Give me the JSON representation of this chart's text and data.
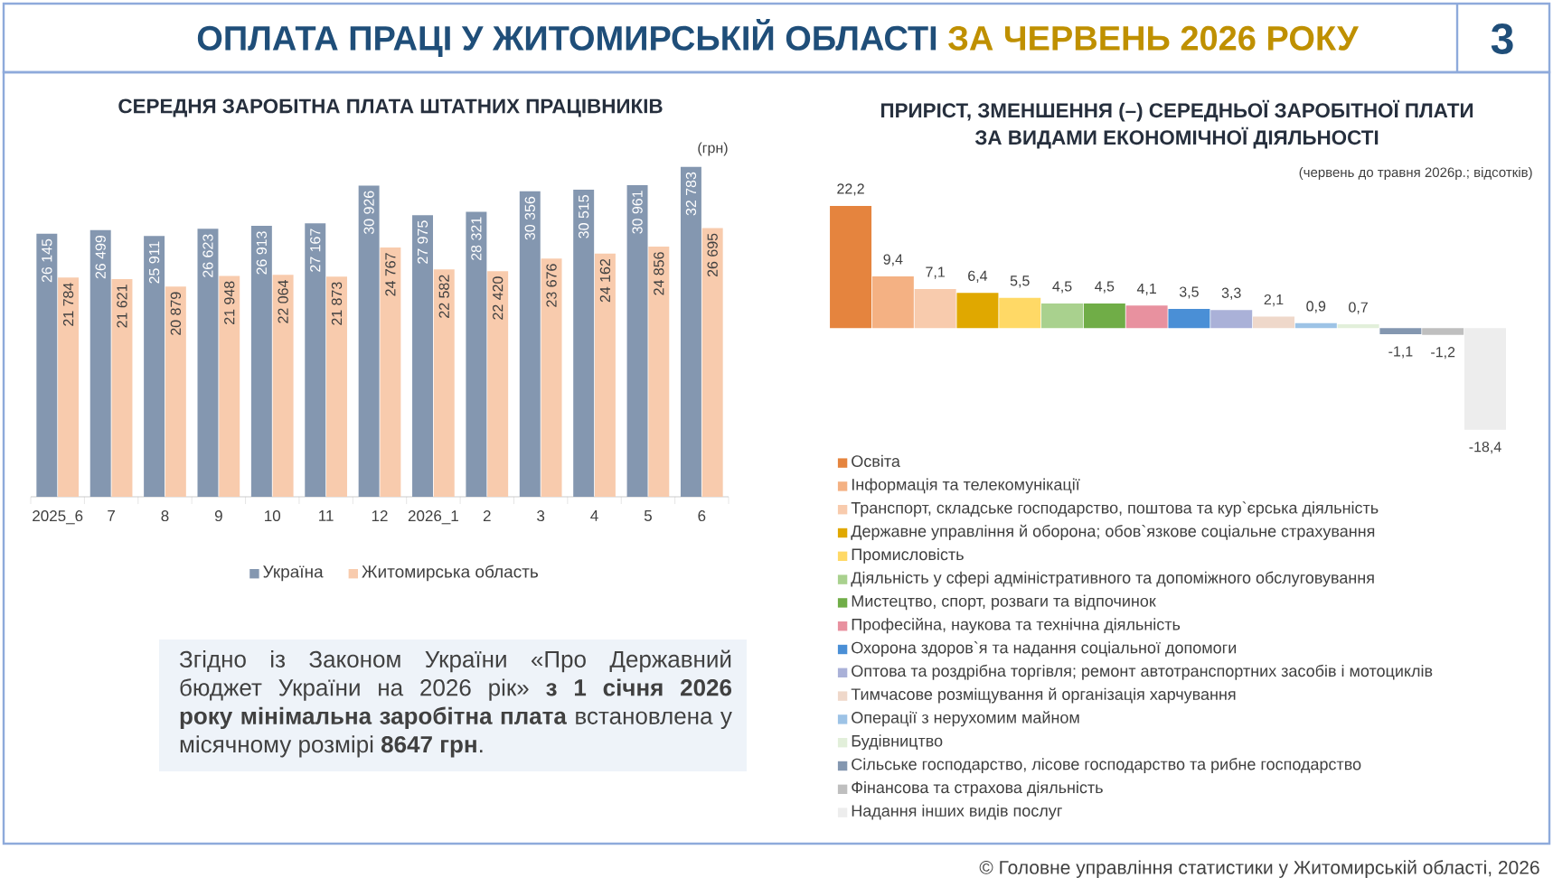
{
  "chart_data": [
    {
      "type": "other",
      "title": "ОПЛАТА ПРАЦІ У ЖИТОМИРСЬКІЙ ОБЛАСТІ",
      "subtitle": "ЗА ЧЕРВЕНЬ 2026 РОКУ",
      "annotations": [
        "3"
      ]
    },
    {
      "type": "bar",
      "title": "СЕРЕДНЯ ЗАРОБІТНА ПЛАТА ШТАТНИХ ПРАЦІВНИКІВ",
      "ylabel": "(грн)",
      "categories": [
        "2025_6",
        "7",
        "8",
        "9",
        "10",
        "11",
        "12",
        "2026_1",
        "2",
        "3",
        "4",
        "5",
        "6"
      ],
      "series": [
        {
          "name": "Україна",
          "color": "#8497b0",
          "values": [
            26145,
            26499,
            25911,
            26623,
            26913,
            27167,
            30926,
            27975,
            28321,
            30356,
            30515,
            30961,
            32783
          ],
          "value_labels": [
            "26 145",
            "26 499",
            "25 911",
            "26 623",
            "26 913",
            "27 167",
            "30 926",
            "27 975",
            "28 321",
            "30 356",
            "30 515",
            "30 961",
            "32 783"
          ]
        },
        {
          "name": "Житомирська область",
          "color": "#f8cbad",
          "values": [
            21784,
            21621,
            20879,
            21948,
            22064,
            21873,
            24767,
            22582,
            22420,
            23676,
            24162,
            24856,
            26695
          ],
          "value_labels": [
            "21 784",
            "21 621",
            "20 879",
            "21 948",
            "22 064",
            "21 873",
            "24 767",
            "22 582",
            "22 420",
            "23 676",
            "24 162",
            "24 856",
            "26 695"
          ]
        }
      ],
      "legend": "bottom",
      "tick_labels": "x"
    },
    {
      "type": "bar",
      "title": "ПРИРІСТ, ЗМЕНШЕННЯ (–) СЕРЕДНЬОЇ ЗАРОБІТНОЇ ПЛАТИ ЗА ВИДАМИ ЕКОНОМІЧНОЇ ДІЯЛЬНОСТІ",
      "ylabel": "(червень до травня 2026р.; відсотків)",
      "categories": [
        null
      ],
      "series": [
        {
          "name": "Освіта",
          "color": "#e5843e",
          "values": [
            22.2
          ],
          "value_labels": [
            "22,2"
          ]
        },
        {
          "name": "Інформація та телекомунікації",
          "color": "#f4b183",
          "values": [
            9.4
          ],
          "value_labels": [
            "9,4"
          ]
        },
        {
          "name": "Транспорт, складське господарство, поштова та кур`єрська діяльність",
          "color": "#f8cbad",
          "values": [
            7.1
          ],
          "value_labels": [
            "7,1"
          ]
        },
        {
          "name": "Державне управління й оборона; обов`язкове соціальне страхування",
          "color": "#e0a800",
          "values": [
            6.4
          ],
          "value_labels": [
            "6,4"
          ]
        },
        {
          "name": "Промисловість",
          "color": "#ffd966",
          "values": [
            5.5
          ],
          "value_labels": [
            "5,5"
          ]
        },
        {
          "name": "Діяльність у сфері адміністративного та допоміжного обслуговування",
          "color": "#a9d18e",
          "values": [
            4.5
          ],
          "value_labels": [
            "4,5"
          ]
        },
        {
          "name": "Мистецтво, спорт, розваги та відпочинок",
          "color": "#70ad47",
          "values": [
            4.5
          ],
          "value_labels": [
            "4,5"
          ]
        },
        {
          "name": "Професійна, наукова та технічна діяльність",
          "color": "#e8919f",
          "values": [
            4.1
          ],
          "value_labels": [
            "4,1"
          ]
        },
        {
          "name": "Охорона здоров`я та надання соціальної допомоги",
          "color": "#4a8fd6",
          "values": [
            3.5
          ],
          "value_labels": [
            "3,5"
          ]
        },
        {
          "name": "Оптова та роздрібна торгівля; ремонт автотранспортних засобів і мотоциклів",
          "color": "#aab1d8",
          "values": [
            3.3
          ],
          "value_labels": [
            "3,3"
          ]
        },
        {
          "name": "Тимчасове розміщування й організація харчування",
          "color": "#efd8ca",
          "values": [
            2.1
          ],
          "value_labels": [
            "2,1"
          ]
        },
        {
          "name": "Операції з нерухомим майном",
          "color": "#9dc3e6",
          "values": [
            0.9
          ],
          "value_labels": [
            "0,9"
          ]
        },
        {
          "name": "Будівництво",
          "color": "#e2efda",
          "values": [
            0.7
          ],
          "value_labels": [
            "0,7"
          ]
        },
        {
          "name": "Сільське господарство, лісове господарство та рибне господарство",
          "color": "#8497b0",
          "values": [
            -1.1
          ],
          "value_labels": [
            "-1,1"
          ]
        },
        {
          "name": "Фінансова та страхова діяльність",
          "color": "#bfbfbf",
          "values": [
            -1.2
          ],
          "value_labels": [
            "-1,2"
          ]
        },
        {
          "name": "Надання інших видів послуг",
          "color": "#ededed",
          "values": [
            -18.4
          ],
          "value_labels": [
            "-18,4"
          ]
        }
      ],
      "legend": "bottom",
      "tick_labels": false
    },
    {
      "type": "other",
      "annotations": [
        "Згідно із Законом України «Про Державний бюджет України на 2026 рік» **з 1 січня 2026 року мінімальна заробітна плата** встановлена у місячному розмірі **8647 грн**.",
        "© Головне управління статистики у Житомирській області, 2026"
      ]
    }
  ]
}
